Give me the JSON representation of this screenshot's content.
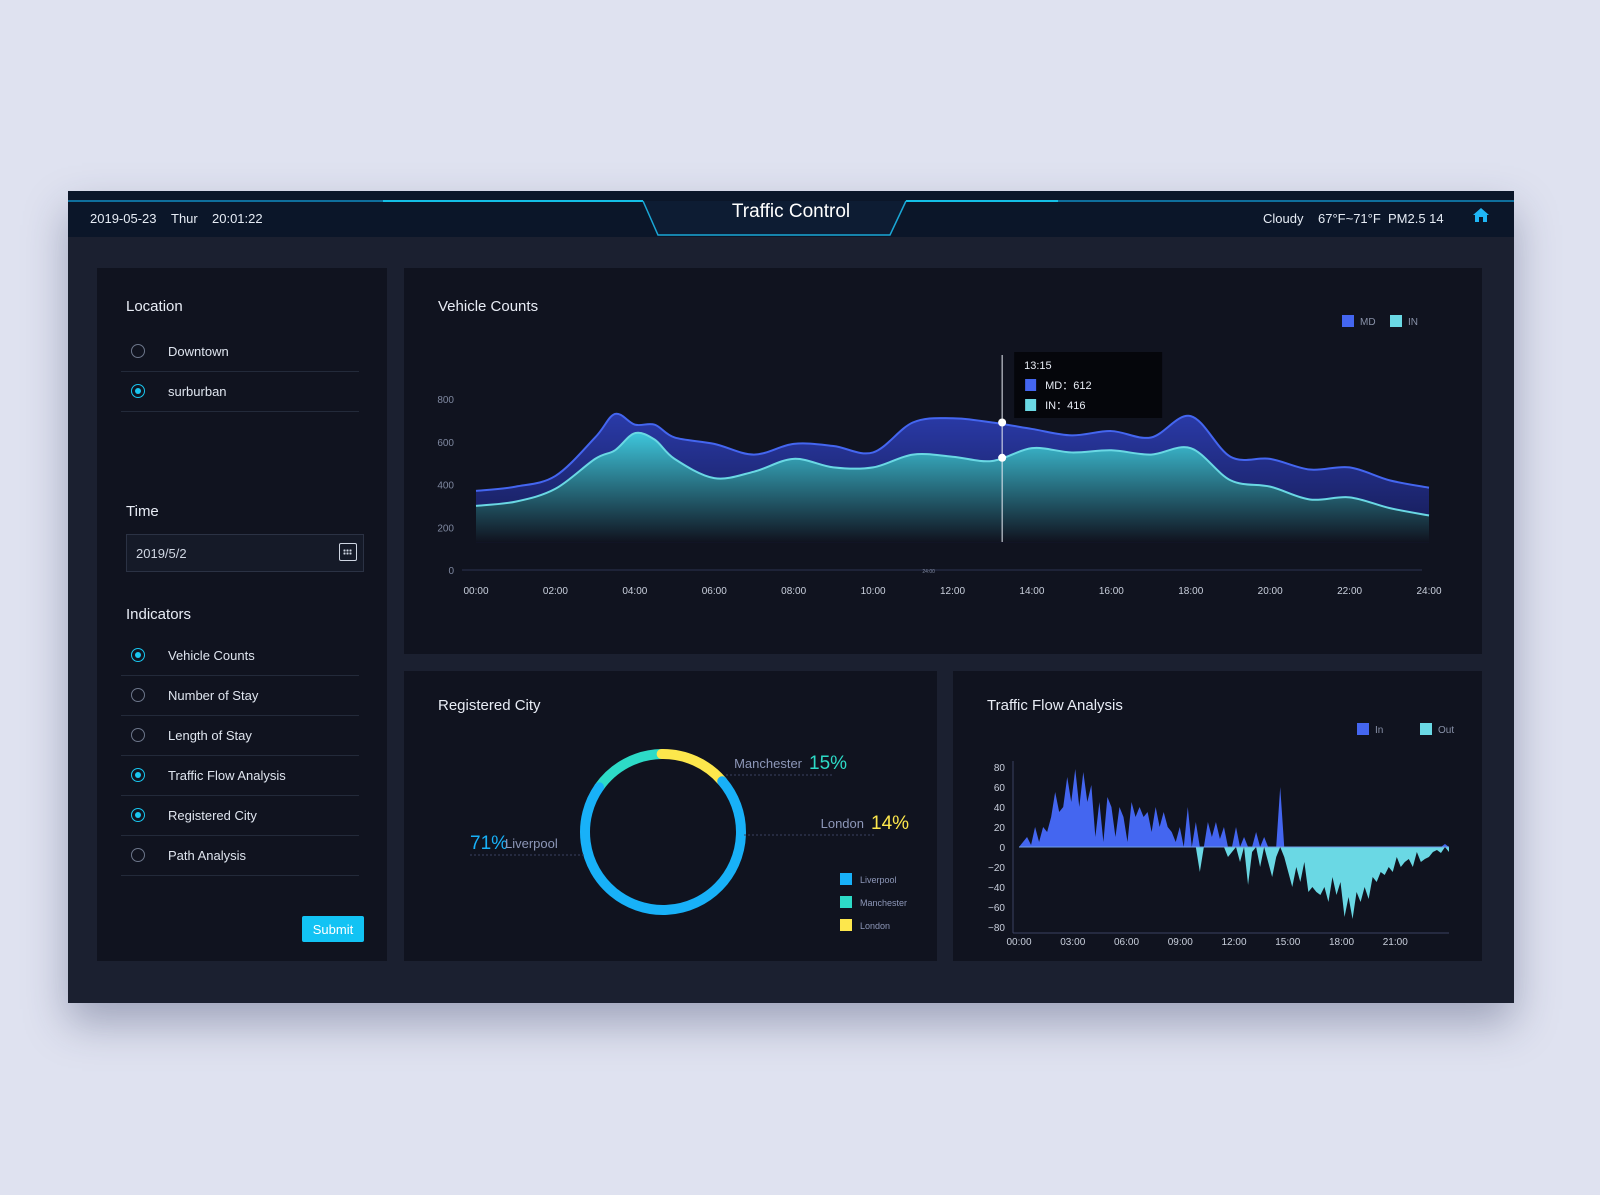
{
  "header": {
    "date": "2019-05-23",
    "weekday": "Thur",
    "time": "20:01:22",
    "title": "Traffic Control",
    "weather": "Cloudy",
    "temperature": "67°F~71°F",
    "air_quality": "PM2.5 14",
    "home_icon": "home-icon"
  },
  "colors": {
    "accent": "#12c3f4",
    "md": "#4466f0",
    "in": "#6ad8e4",
    "liverpool": "#18b1f8",
    "manchester": "#2ddbc7",
    "london": "#fde74c",
    "panel": "#10131f"
  },
  "sidebar": {
    "location_title": "Location",
    "locations": [
      {
        "label": "Downtown",
        "selected": false
      },
      {
        "label": "surburban",
        "selected": true
      }
    ],
    "time_title": "Time",
    "date_value": "2019/5/2",
    "indicators_title": "Indicators",
    "indicators": [
      {
        "label": "Vehicle Counts",
        "selected": true
      },
      {
        "label": "Number of Stay",
        "selected": false
      },
      {
        "label": "Length of Stay",
        "selected": false
      },
      {
        "label": "Traffic Flow Analysis",
        "selected": true
      },
      {
        "label": "Registered City",
        "selected": true
      },
      {
        "label": "Path Analysis",
        "selected": false
      }
    ],
    "submit_label": "Submit"
  },
  "chart_data": [
    {
      "type": "area",
      "title": "Vehicle Counts",
      "legend": [
        "MD",
        "IN"
      ],
      "legend_position": "top-right",
      "x": [
        0,
        1,
        2,
        3,
        3.5,
        4,
        4.5,
        5,
        6,
        7,
        8,
        9,
        10,
        11,
        12,
        13,
        14,
        15,
        16,
        17,
        18,
        19,
        20,
        21,
        22,
        23,
        24
      ],
      "series": [
        {
          "name": "MD",
          "values": [
            370,
            390,
            440,
            620,
            730,
            680,
            680,
            620,
            590,
            540,
            590,
            580,
            550,
            690,
            710,
            690,
            660,
            630,
            650,
            620,
            720,
            530,
            520,
            470,
            480,
            420,
            385
          ]
        },
        {
          "name": "IN",
          "values": [
            300,
            320,
            380,
            520,
            560,
            640,
            610,
            520,
            430,
            460,
            520,
            480,
            480,
            540,
            530,
            510,
            570,
            550,
            560,
            540,
            570,
            420,
            390,
            330,
            340,
            290,
            255
          ]
        }
      ],
      "yticks": [
        "0",
        "200",
        "400",
        "600",
        "800"
      ],
      "ylim": [
        0,
        800
      ],
      "xticks": [
        "00:00",
        "02:00",
        "04:00",
        "06:00",
        "08:00",
        "10:00",
        "12:00",
        "14:00",
        "16:00",
        "18:00",
        "20:00",
        "22:00",
        "24:00"
      ],
      "axis_note": "24:00",
      "tooltip": {
        "time": "13:15",
        "md_label": "MD：612",
        "in_label": "IN：416"
      }
    },
    {
      "type": "pie",
      "title": "Registered City",
      "legend": [
        "Liverpool",
        "Manchester",
        "London"
      ],
      "slices": [
        {
          "name": "Liverpool",
          "value": 71,
          "pct": "71%"
        },
        {
          "name": "Manchester",
          "value": 15,
          "pct": "15%"
        },
        {
          "name": "London",
          "value": 14,
          "pct": "14%"
        }
      ]
    },
    {
      "type": "area",
      "title": "Traffic Flow Analysis",
      "legend": [
        "In",
        "Out"
      ],
      "legend_position": "top-right",
      "x_range": [
        0,
        24
      ],
      "ylim": [
        -80,
        80
      ],
      "yticks": [
        "80",
        "60",
        "40",
        "20",
        "0",
        "−20",
        "−40",
        "−60",
        "−80"
      ],
      "xticks": [
        "00:00",
        "03:00",
        "06:00",
        "09:00",
        "12:00",
        "15:00",
        "18:00",
        "21:00"
      ],
      "values": [
        0,
        5,
        10,
        2,
        20,
        5,
        20,
        15,
        30,
        55,
        35,
        40,
        70,
        45,
        78,
        40,
        75,
        45,
        62,
        10,
        45,
        5,
        50,
        40,
        10,
        40,
        30,
        5,
        45,
        30,
        40,
        30,
        35,
        15,
        40,
        20,
        35,
        20,
        15,
        5,
        20,
        0,
        40,
        0,
        25,
        -25,
        0,
        25,
        10,
        25,
        8,
        20,
        -10,
        -5,
        20,
        -15,
        10,
        -38,
        -5,
        15,
        -20,
        10,
        -15,
        -30,
        -10,
        60,
        -10,
        -25,
        -40,
        -20,
        -35,
        -15,
        -45,
        -40,
        -45,
        -48,
        -40,
        -55,
        -30,
        -48,
        -35,
        -70,
        -50,
        -72,
        -45,
        -55,
        -40,
        -52,
        -30,
        -35,
        -25,
        -28,
        -20,
        -25,
        -10,
        -20,
        -15,
        -12,
        -20,
        -5,
        -15,
        -12,
        -10,
        -5,
        -3,
        -6,
        3,
        -5
      ]
    }
  ]
}
